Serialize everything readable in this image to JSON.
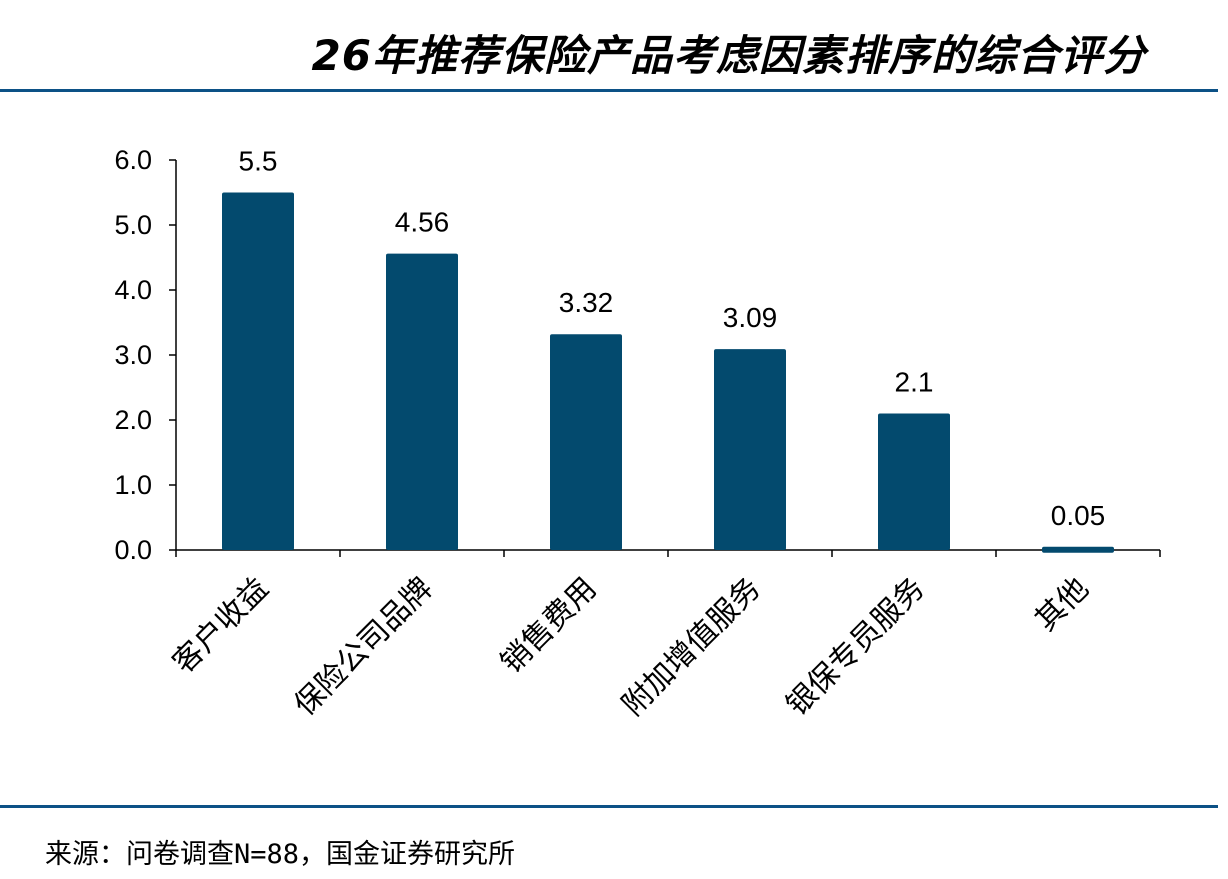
{
  "title": "26年推荐保险产品考虑因素排序的综合评分",
  "source": "来源：问卷调查N=88，国金证券研究所",
  "chart_data": {
    "type": "bar",
    "title": "26年推荐保险产品考虑因素排序的综合评分",
    "categories": [
      "客户收益",
      "保险公司品牌",
      "销售费用",
      "附加增值服务",
      "银保专员服务",
      "其他"
    ],
    "values": [
      5.5,
      4.56,
      3.32,
      3.09,
      2.1,
      0.05
    ],
    "value_labels": [
      "5.5",
      "4.56",
      "3.32",
      "3.09",
      "2.1",
      "0.05"
    ],
    "ylim": [
      0,
      6
    ],
    "yticks": [
      "0.0",
      "1.0",
      "2.0",
      "3.0",
      "4.0",
      "5.0",
      "6.0"
    ],
    "xlabel": "",
    "ylabel": "",
    "grid": false,
    "bar_color": "#034a6e",
    "rule_color": "#0c5186"
  }
}
